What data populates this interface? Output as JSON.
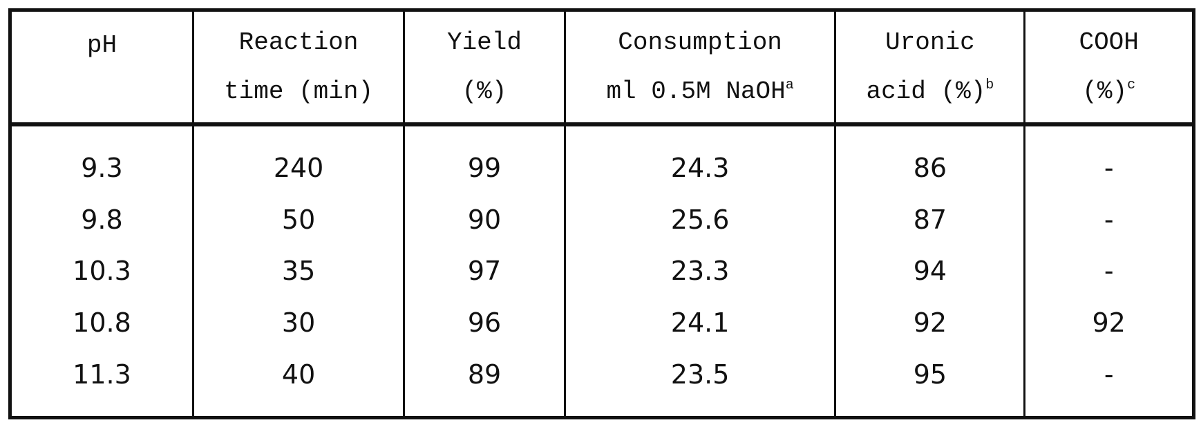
{
  "table": {
    "headers": [
      {
        "line1": "pH",
        "line2": "",
        "sup": ""
      },
      {
        "line1": "Reaction",
        "line2": "time (min)",
        "sup": ""
      },
      {
        "line1": "Yield",
        "line2": "(%)",
        "sup": ""
      },
      {
        "line1": "Consumption",
        "line2": "ml 0.5M NaOH",
        "sup": "a"
      },
      {
        "line1": "Uronic",
        "line2": "acid (%)",
        "sup": "b"
      },
      {
        "line1": "COOH",
        "line2": "(%)",
        "sup": "c"
      }
    ],
    "rows": [
      [
        "9.3",
        "240",
        "99",
        "24.3",
        "86",
        "-"
      ],
      [
        "9.8",
        "50",
        "90",
        "25.6",
        "87",
        "-"
      ],
      [
        "10.3",
        "35",
        "97",
        "23.3",
        "94",
        "-"
      ],
      [
        "10.8",
        "30",
        "96",
        "24.1",
        "92",
        "92"
      ],
      [
        "11.3",
        "40",
        "89",
        "23.5",
        "95",
        "-"
      ]
    ]
  }
}
